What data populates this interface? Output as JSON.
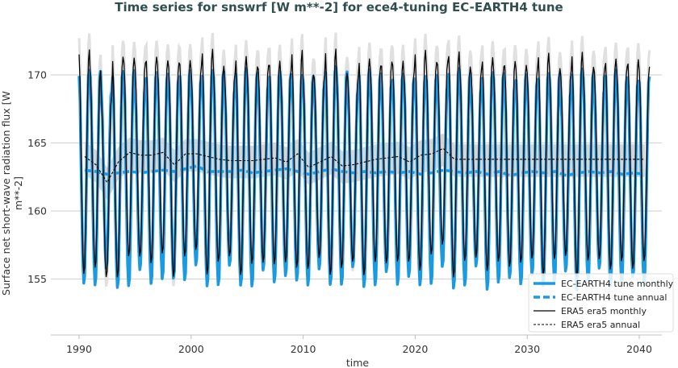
{
  "title": "Time series for snswrf [W m**-2] for ece4-tuning EC-EARTH4 tune",
  "chart_data": {
    "type": "line",
    "title": "Time series for snswrf [W m**-2] for ece4-tuning EC-EARTH4 tune",
    "xlabel": "time",
    "ylabel": "Surface net short-wave radiation flux [W m**-2]",
    "xlim": [
      1984.6,
      2041.9
    ],
    "ylim": [
      151.4,
      173.5
    ],
    "xticks": [
      1990,
      2000,
      2010,
      2020,
      2030,
      2040
    ],
    "yticks": [
      155,
      160,
      165,
      170
    ],
    "grid": "horizontal",
    "legend_position": "bottom-right",
    "annual_years": [
      1990,
      1991,
      1992,
      1993,
      1994,
      1995,
      1996,
      1997,
      1998,
      1999,
      2000,
      2001,
      2002,
      2003,
      2004,
      2005,
      2006,
      2007,
      2008,
      2009,
      2010,
      2011,
      2012,
      2013,
      2014,
      2015,
      2016,
      2017,
      2018,
      2019,
      2020,
      2021,
      2022,
      2023,
      2024,
      2025,
      2026,
      2027,
      2028,
      2029,
      2030,
      2031,
      2032,
      2033,
      2034,
      2035,
      2036,
      2037,
      2038,
      2039,
      2040
    ],
    "series": [
      {
        "name": "EC-EARTH4 tune monthly",
        "kind": "monthly",
        "color": "#1a9ae0",
        "monthly_climatology_anomaly": [
          5.4,
          3.6,
          -0.4,
          -4.4,
          -7.6,
          -9.1,
          -8.6,
          -5.6,
          -1.4,
          2.6,
          5.4,
          5.8
        ],
        "base": "EC-EARTH4 tune annual"
      },
      {
        "name": "EC-EARTH4 tune annual",
        "kind": "annual",
        "color": "#1a9ae0",
        "values": [
          163.0,
          162.9,
          162.7,
          162.8,
          162.9,
          162.8,
          162.9,
          163.0,
          162.9,
          163.1,
          163.3,
          162.9,
          162.9,
          162.9,
          163.0,
          162.8,
          162.9,
          163.0,
          163.1,
          162.9,
          162.7,
          162.9,
          163.1,
          162.9,
          162.8,
          162.9,
          162.8,
          162.9,
          162.8,
          162.9,
          162.7,
          162.8,
          163.0,
          162.9,
          162.8,
          162.9,
          162.7,
          162.9,
          162.6,
          162.8,
          162.9,
          162.8,
          162.9,
          162.6,
          162.8,
          162.9,
          162.8,
          162.9,
          162.7,
          162.8,
          162.7
        ]
      },
      {
        "name": "ERA5 era5 monthly",
        "kind": "monthly",
        "color": "#000000",
        "monthly_climatology_anomaly": [
          5.6,
          3.8,
          -0.3,
          -4.3,
          -7.5,
          -8.8,
          -8.4,
          -5.5,
          -1.5,
          2.4,
          5.2,
          5.9
        ],
        "base": "ERA5 era5 annual"
      },
      {
        "name": "ERA5 era5 annual",
        "kind": "annual",
        "color": "#000000",
        "values": [
          164.0,
          163.4,
          162.1,
          163.6,
          164.3,
          164.1,
          164.1,
          164.3,
          163.4,
          164.2,
          164.2,
          164.0,
          163.8,
          163.7,
          163.7,
          163.7,
          163.8,
          163.9,
          163.6,
          164.2,
          163.2,
          163.6,
          164.0,
          163.3,
          163.4,
          163.6,
          163.8,
          163.9,
          164.0,
          163.6,
          164.1,
          164.2,
          164.6,
          163.8,
          163.8,
          163.8,
          163.8,
          163.8,
          163.8,
          163.8,
          163.8,
          163.8,
          163.8,
          163.8,
          163.8,
          163.8,
          163.8,
          163.8,
          163.8,
          163.8,
          163.8
        ]
      }
    ]
  }
}
